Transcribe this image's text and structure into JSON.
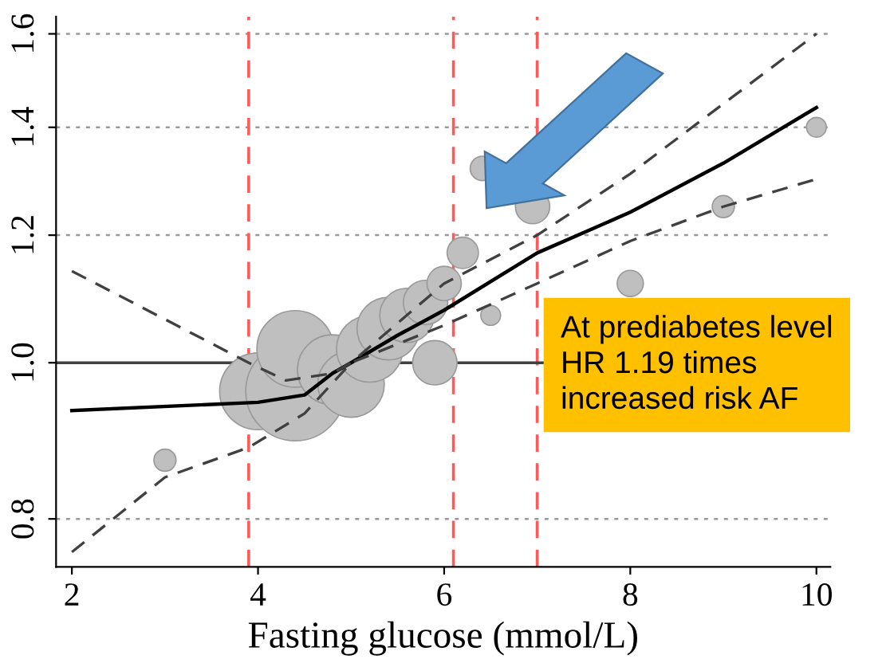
{
  "chart_data": {
    "type": "bubble",
    "xlabel": "Fasting glucose (mmol/L)",
    "log": "y",
    "xlim": [
      1.83,
      10.15
    ],
    "ylim": [
      0.747,
      1.64
    ],
    "xticks": [
      2,
      4,
      6,
      8,
      10
    ],
    "yticks": [
      0.8,
      {
        "value": 1,
        "label": "1.0"
      },
      1.2,
      1.4,
      1.6
    ],
    "grid": "y",
    "series": [
      {
        "color": "#bfbfbf",
        "x": [
          3.0,
          4.0,
          4.4,
          4.4,
          4.8,
          5.0,
          5.2,
          5.4,
          5.6,
          5.8,
          5.9,
          6.0,
          6.2,
          6.41,
          6.5,
          6.95,
          8.0,
          9.0,
          10.0
        ],
        "values": [
          0.87,
          0.96,
          0.96,
          1.02,
          0.99,
          0.97,
          1.02,
          1.05,
          1.07,
          1.09,
          1.0,
          1.12,
          1.17,
          1.32,
          1.07,
          1.25,
          1.12,
          1.25,
          1.4
        ],
        "sizes": [
          0.05,
          0.6,
          1,
          0.6,
          0.5,
          0.45,
          0.45,
          0.4,
          0.3,
          0.2,
          0.2,
          0.12,
          0.1,
          0.06,
          0.04,
          0.12,
          0.07,
          0.05,
          0.04
        ]
      },
      {
        "type": "line",
        "color": "#000000",
        "line_style": "solid",
        "x": [
          2,
          4,
          4.5,
          4.8,
          5,
          5.5,
          6,
          7,
          8,
          9,
          10
        ],
        "values": [
          0.934,
          0.945,
          0.955,
          0.985,
          1.0,
          1.04,
          1.078,
          1.17,
          1.24,
          1.33,
          1.44
        ]
      },
      {
        "type": "line",
        "color": "#404040",
        "line_style": "dashed",
        "x": [
          2,
          3.9,
          4.3,
          4.8,
          5,
          6,
          7,
          8,
          10
        ],
        "values": [
          1.14,
          1.0,
          0.975,
          0.985,
          1.0,
          1.12,
          1.2,
          1.31,
          1.6
        ]
      },
      {
        "type": "line",
        "color": "#404040",
        "line_style": "dashed",
        "x": [
          2,
          3,
          3.9,
          4.5,
          5,
          6,
          7,
          8,
          9,
          10
        ],
        "values": [
          0.763,
          0.849,
          0.886,
          0.93,
          1.0,
          1.055,
          1.12,
          1.19,
          1.25,
          1.3
        ]
      }
    ],
    "ref_lines": [
      {
        "axis": "x",
        "value": 3.9,
        "color": "#ff5a5a",
        "line_style": "dashed"
      },
      {
        "axis": "x",
        "value": 6.1,
        "color": "#ff5a5a",
        "line_style": "dashed"
      },
      {
        "axis": "x",
        "value": 7.0,
        "color": "#ff5a5a",
        "line_style": "dashed"
      },
      {
        "axis": "y",
        "value": 1.0,
        "color": "#404040",
        "line_style": "solid"
      }
    ],
    "annotations": [
      "At prediabetes level\nHR 1.19 times\nincreased risk AF"
    ]
  }
}
